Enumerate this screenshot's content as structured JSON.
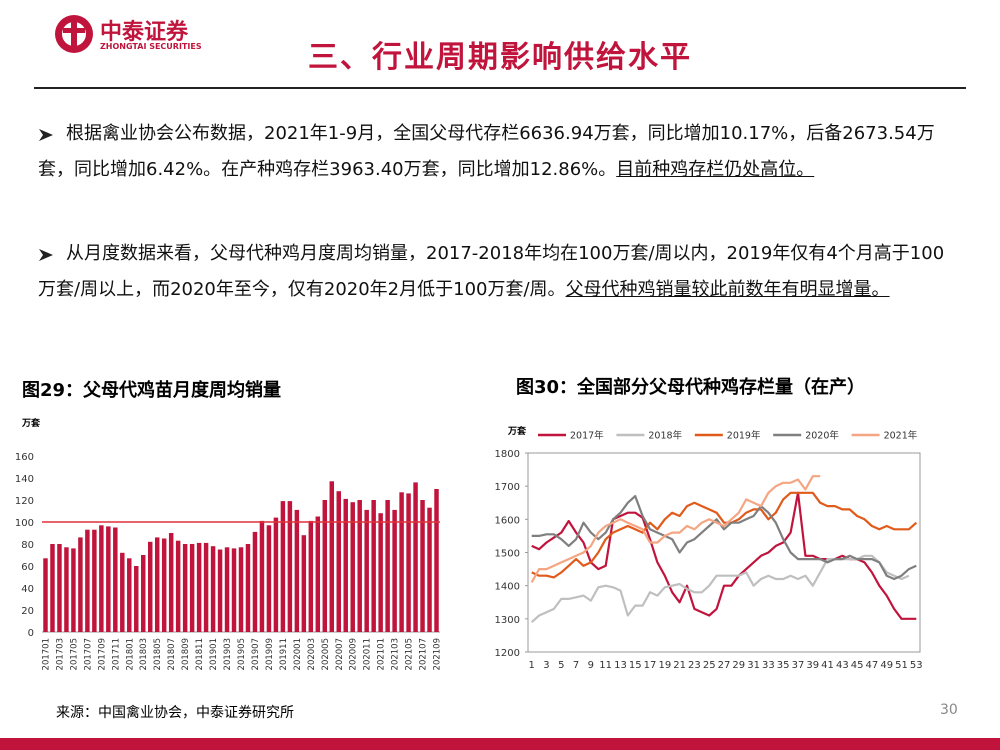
{
  "header": {
    "logo_cn": "中泰证券",
    "logo_en": "ZHONGTAI SECURITIES",
    "title": "三、行业周期影响供给水平"
  },
  "bullets": [
    {
      "text": "根据禽业协会公布数据，2021年1-9月，全国父母代存栏6636.94万套，同比增加10.17%，后备2673.54万套，同比增加6.42%。在产种鸡存栏3963.40万套，同比增加12.86%。",
      "underline": "目前种鸡存栏仍处高位。"
    },
    {
      "text": "从月度数据来看，父母代种鸡月度周均销量，2017-2018年均在100万套/周以内，2019年仅有4个月高于100万套/周以上，而2020年至今，仅有2020年2月低于100万套/周。",
      "underline": "父母代种鸡销量较此前数年有明显增量。"
    }
  ],
  "chart_data": [
    {
      "type": "bar",
      "title": "图29：父母代鸡苗月度周均销量",
      "y_label": "万套",
      "color": "#c0143c",
      "hline": 100,
      "hline_color": "#e0303a",
      "categories": [
        "201701",
        null,
        "201703",
        null,
        "201705",
        null,
        "201707",
        null,
        "201709",
        null,
        "201711",
        null,
        "201801",
        null,
        "201803",
        null,
        "201805",
        null,
        "201807",
        null,
        "201809",
        null,
        "201811",
        null,
        "201901",
        null,
        "201903",
        null,
        "201905",
        null,
        "201907",
        null,
        "201909",
        null,
        "201911",
        null,
        "202001",
        null,
        "202003",
        null,
        "202005",
        null,
        "202007",
        null,
        "202009",
        null,
        "202011",
        null,
        "202101",
        null,
        "202103",
        null,
        "202105",
        null,
        "202107",
        null,
        "202109"
      ],
      "values": [
        67,
        80,
        80,
        77,
        76,
        86,
        93,
        93,
        97,
        96,
        95,
        72,
        67,
        60,
        70,
        82,
        86,
        85,
        90,
        83,
        80,
        80,
        81,
        81,
        78,
        75,
        77,
        76,
        77,
        80,
        91,
        101,
        97,
        104,
        119,
        119,
        111,
        88,
        101,
        105,
        120,
        137,
        128,
        121,
        118,
        120,
        111,
        120,
        108,
        120,
        111,
        127,
        126,
        136,
        120,
        113,
        130
      ],
      "ylim": [
        0,
        160
      ],
      "yticks": [
        0,
        20,
        40,
        60,
        80,
        100,
        120,
        140,
        160
      ]
    },
    {
      "type": "line",
      "title": "图30：全国部分父母代种鸡存栏量（在产）",
      "y_label": "万套",
      "legend": "top",
      "categories": [
        "1",
        null,
        "3",
        null,
        "5",
        null,
        "7",
        null,
        "9",
        null,
        "11",
        null,
        "13",
        null,
        "15",
        null,
        "17",
        null,
        "19",
        null,
        "21",
        null,
        "23",
        null,
        "25",
        null,
        "27",
        null,
        "29",
        null,
        "31",
        null,
        "33",
        null,
        "35",
        null,
        "37",
        null,
        "39",
        null,
        "41",
        null,
        "43",
        null,
        "45",
        null,
        "47",
        null,
        "49",
        null,
        "51",
        null,
        "53"
      ],
      "ylim": [
        1200,
        1800
      ],
      "yticks": [
        1200,
        1300,
        1400,
        1500,
        1600,
        1700,
        1800
      ],
      "series": [
        {
          "name": "2017年",
          "color": "#c0143c",
          "values": [
            1520,
            1510,
            1530,
            1545,
            1560,
            1595,
            1560,
            1530,
            1470,
            1450,
            1460,
            1600,
            1610,
            1620,
            1620,
            1605,
            1540,
            1470,
            1430,
            1380,
            1350,
            1400,
            1330,
            1320,
            1310,
            1330,
            1400,
            1400,
            1430,
            1450,
            1470,
            1490,
            1500,
            1520,
            1530,
            1560,
            1680,
            1490,
            1490,
            1480,
            1480,
            1480,
            1490,
            1480,
            1480,
            1470,
            1440,
            1400,
            1370,
            1330,
            1300,
            1300,
            1300
          ]
        },
        {
          "name": "2018年",
          "color": "#bfbfbf",
          "values": [
            1290,
            1310,
            1320,
            1330,
            1360,
            1360,
            1365,
            1370,
            1355,
            1395,
            1400,
            1395,
            1385,
            1310,
            1340,
            1340,
            1380,
            1370,
            1395,
            1400,
            1405,
            1390,
            1380,
            1380,
            1400,
            1430,
            1430,
            1430,
            1430,
            1440,
            1400,
            1420,
            1430,
            1420,
            1420,
            1430,
            1420,
            1430,
            1400,
            1440,
            1480,
            1480,
            1480,
            1480,
            1480,
            1490,
            1490,
            1470,
            1440,
            1430,
            1420,
            1430,
            null
          ]
        },
        {
          "name": "2019年",
          "color": "#e05a1a",
          "values": [
            1440,
            1430,
            1430,
            1425,
            1440,
            1460,
            1480,
            1460,
            1470,
            1500,
            1540,
            1560,
            1570,
            1580,
            1570,
            1560,
            1590,
            1570,
            1600,
            1620,
            1610,
            1640,
            1650,
            1640,
            1630,
            1620,
            1590,
            1590,
            1600,
            1620,
            1630,
            1630,
            1600,
            1620,
            1660,
            1680,
            1680,
            1680,
            1680,
            1650,
            1640,
            1640,
            1630,
            1630,
            1610,
            1600,
            1580,
            1570,
            1580,
            1570,
            1570,
            1570,
            1590
          ]
        },
        {
          "name": "2020年",
          "color": "#7f7f7f",
          "values": [
            1550,
            1550,
            1555,
            1555,
            1540,
            1520,
            1540,
            1590,
            1560,
            1540,
            1560,
            1600,
            1620,
            1650,
            1670,
            1610,
            1570,
            1560,
            1550,
            1540,
            1500,
            1530,
            1540,
            1560,
            1580,
            1600,
            1570,
            1590,
            1590,
            1600,
            1610,
            1640,
            1620,
            1590,
            1540,
            1500,
            1480,
            1480,
            1480,
            1480,
            1470,
            1480,
            1480,
            1490,
            1480,
            1480,
            1480,
            1470,
            1430,
            1420,
            1430,
            1450,
            1460
          ]
        },
        {
          "name": "2021年",
          "color": "#f4a582",
          "values": [
            1410,
            1450,
            1450,
            1460,
            1470,
            1480,
            1490,
            1500,
            1520,
            1560,
            1580,
            1590,
            1600,
            1590,
            1580,
            1570,
            1530,
            1530,
            1550,
            1560,
            1560,
            1580,
            1570,
            1590,
            1600,
            1590,
            1580,
            1600,
            1620,
            1660,
            1650,
            1640,
            1680,
            1700,
            1710,
            1710,
            1720,
            1690,
            1730,
            1730,
            null,
            null,
            null,
            null,
            null,
            null,
            null,
            null,
            null,
            null,
            null,
            null,
            null
          ]
        }
      ]
    }
  ],
  "footer": {
    "source": "来源：中国禽业协会，中泰证券研究所",
    "page": "30"
  }
}
